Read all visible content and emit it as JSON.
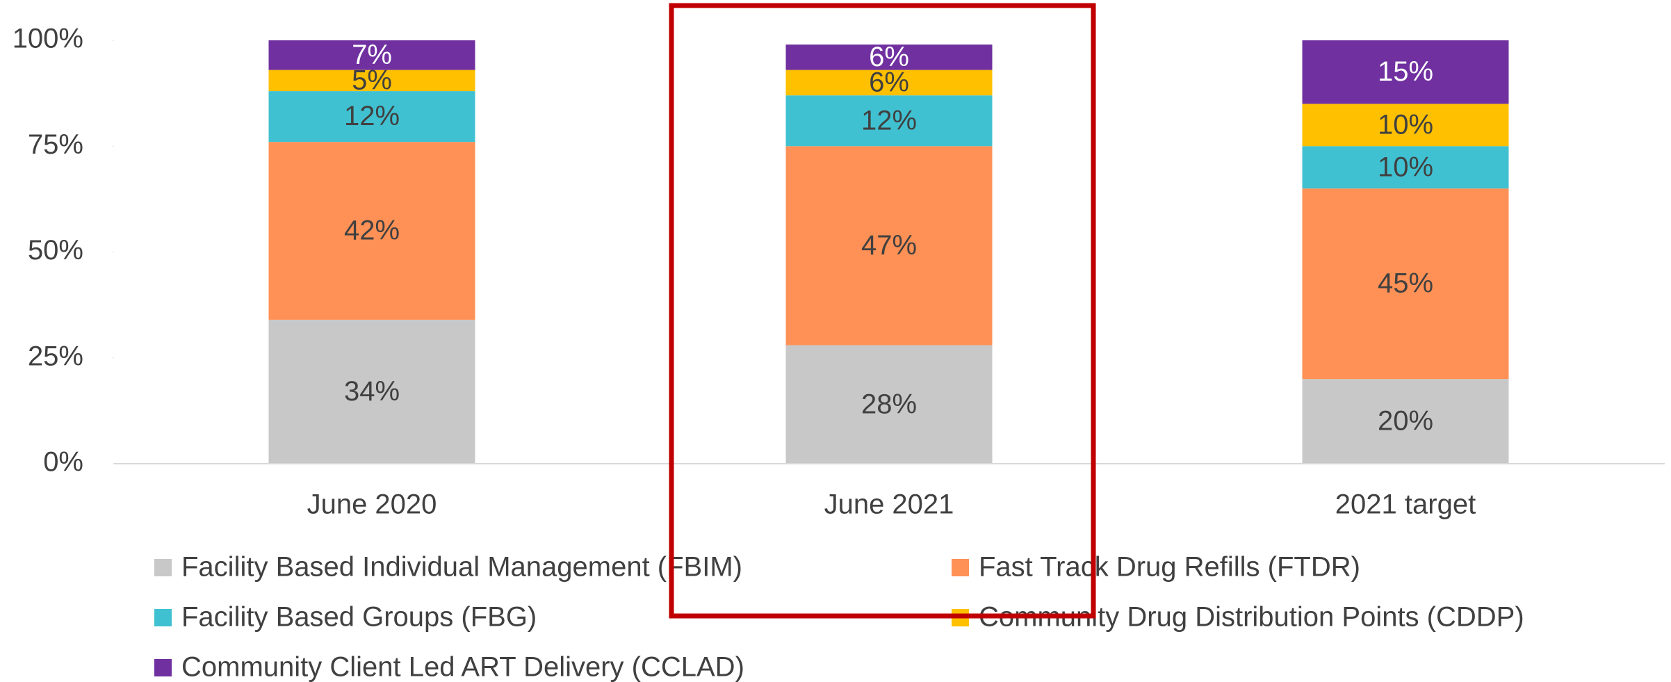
{
  "chart_data": {
    "type": "stacked_bar",
    "categories": [
      "June 2020",
      "June 2021",
      "2021 target"
    ],
    "series": [
      {
        "name": "Facility Based Individual Management (FBIM)",
        "color": "#c8c8c8",
        "values": [
          34,
          28,
          20
        ],
        "value_labels": [
          "34%",
          "28%",
          "20%"
        ]
      },
      {
        "name": "Fast Track Drug Refills (FTDR)",
        "color": "#ff9156",
        "values": [
          42,
          47,
          45
        ],
        "value_labels": [
          "42%",
          "47%",
          "45%"
        ]
      },
      {
        "name": "Facility Based Groups (FBG)",
        "color": "#40c1d1",
        "values": [
          12,
          12,
          10
        ],
        "value_labels": [
          "12%",
          "12%",
          "10%"
        ]
      },
      {
        "name": "Community Drug Distribution Points (CDDP)",
        "color": "#ffc000",
        "values": [
          5,
          6,
          10
        ],
        "value_labels": [
          "5%",
          "6%",
          "10%"
        ]
      },
      {
        "name": "Community Client Led ART Delivery (CCLAD)",
        "color": "#7030a0",
        "values": [
          7,
          6,
          15
        ],
        "value_labels": [
          "7%",
          "6%",
          "15%"
        ]
      }
    ],
    "ylim": [
      0,
      100
    ],
    "yticks": [
      {
        "value": 0,
        "label": "0%"
      },
      {
        "value": 25,
        "label": "25%"
      },
      {
        "value": 50,
        "label": "50%"
      },
      {
        "value": 75,
        "label": "75%"
      },
      {
        "value": 100,
        "label": "100%"
      }
    ],
    "grid": false,
    "legend": "bottom"
  }
}
